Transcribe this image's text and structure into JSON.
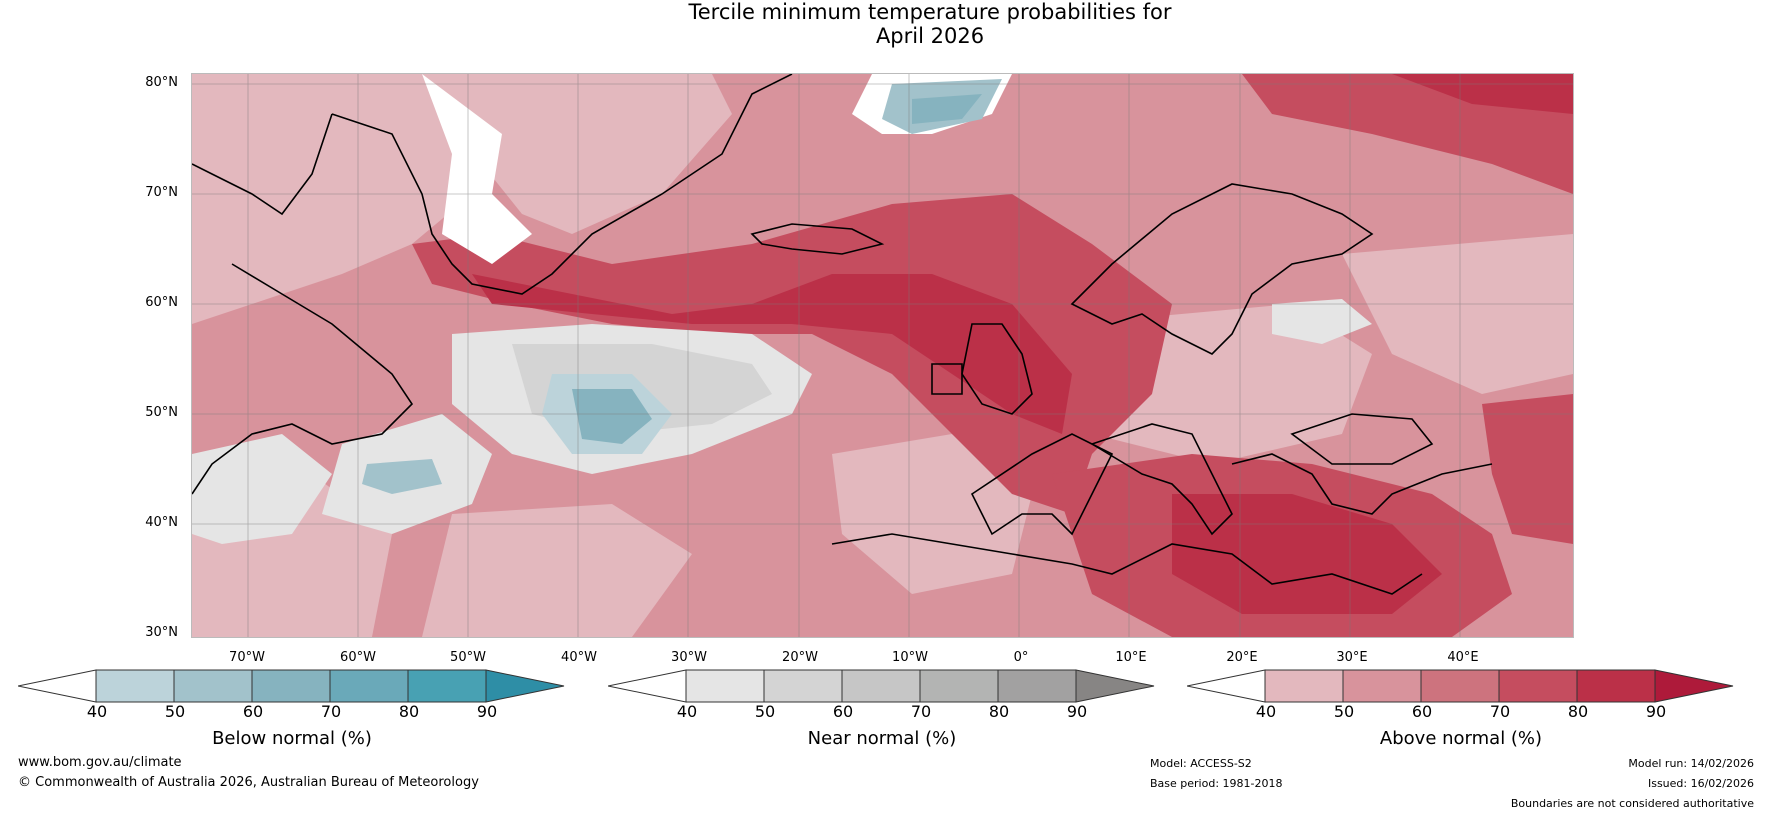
{
  "title": {
    "line1": "Tercile minimum temperature probabilities for",
    "line2": "April 2026"
  },
  "map": {
    "lat_labels": [
      "80°N",
      "70°N",
      "60°N",
      "50°N",
      "40°N",
      "30°N"
    ],
    "lon_labels": [
      "70°W",
      "60°W",
      "50°W",
      "40°W",
      "30°W",
      "20°W",
      "10°W",
      "0°",
      "10°E",
      "20°E",
      "30°E",
      "40°E"
    ]
  },
  "legends": {
    "below": {
      "title": "Below normal (%)",
      "ticks": [
        "40",
        "50",
        "60",
        "70",
        "80",
        "90"
      ],
      "colors": [
        "#ffffff",
        "#bcd3da",
        "#a2c2cb",
        "#86b3bf",
        "#6aa9b9",
        "#48a1b3",
        "#2e8ea6"
      ]
    },
    "near": {
      "title": "Near normal (%)",
      "ticks": [
        "40",
        "50",
        "60",
        "70",
        "80",
        "90"
      ],
      "colors": [
        "#ffffff",
        "#e5e5e5",
        "#d4d4d4",
        "#c6c6c6",
        "#b3b4b3",
        "#a2a1a1",
        "#878584"
      ]
    },
    "above": {
      "title": "Above normal (%)",
      "ticks": [
        "40",
        "50",
        "60",
        "70",
        "80",
        "90"
      ],
      "colors": [
        "#ffffff",
        "#e3b8be",
        "#d8939c",
        "#cd737e",
        "#c54d5f",
        "#bb3048",
        "#ae1a3a"
      ]
    }
  },
  "footer": {
    "url": "www.bom.gov.au/climate",
    "copyright": "© Commonwealth of Australia 2026, Australian Bureau of Meteorology",
    "model": "Model: ACCESS-S2",
    "base_period": "Base period: 1981-2018",
    "model_run": "Model run: 14/02/2026",
    "issued": "Issued: 16/02/2026",
    "disclaimer": "Boundaries are not considered authoritative"
  }
}
